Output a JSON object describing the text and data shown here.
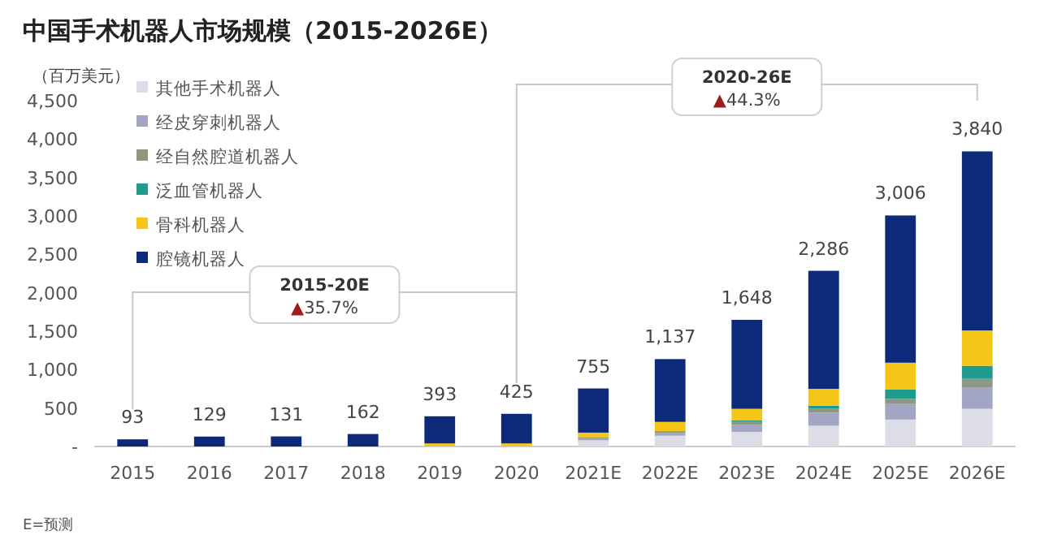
{
  "chart_data": {
    "type": "bar",
    "stacked": true,
    "title": "中国手术机器人市场规模（2015-2026E）",
    "ylabel": "（百万美元）",
    "categories": [
      "2015",
      "2016",
      "2017",
      "2018",
      "2019",
      "2020",
      "2021E",
      "2022E",
      "2023E",
      "2024E",
      "2025E",
      "2026E"
    ],
    "series": [
      {
        "name": "其他手术机器人",
        "color": "#dcdde6",
        "values": [
          null,
          null,
          null,
          null,
          null,
          null,
          80,
          140,
          190,
          270,
          350,
          490
        ]
      },
      {
        "name": "经皮穿刺机器人",
        "color": "#a3a6c2",
        "values": [
          null,
          null,
          null,
          null,
          null,
          null,
          20,
          40,
          90,
          170,
          210,
          280
        ]
      },
      {
        "name": "经自然腔道机器人",
        "color": "#8c9882",
        "values": [
          null,
          null,
          null,
          null,
          null,
          null,
          20,
          20,
          40,
          50,
          60,
          110
        ]
      },
      {
        "name": "泛血管机器人",
        "color": "#1f9a8c",
        "values": [
          null,
          null,
          null,
          null,
          null,
          null,
          null,
          null,
          20,
          40,
          120,
          170
        ]
      },
      {
        "name": "骨科机器人",
        "color": "#f5c518",
        "values": [
          null,
          null,
          null,
          null,
          40,
          40,
          60,
          120,
          150,
          220,
          350,
          460
        ]
      },
      {
        "name": "腔镜机器人",
        "color": "#0d2a7a",
        "values": [
          93,
          129,
          131,
          162,
          353,
          385,
          575,
          817,
          1158,
          1536,
          1916,
          2330
        ]
      }
    ],
    "totals": [
      "93",
      "129",
      "131",
      "162",
      "393",
      "425",
      "755",
      "1,137",
      "1,648",
      "2,286",
      "3,006",
      "3,840"
    ],
    "ylim": [
      0,
      4500
    ],
    "yticks": [
      {
        "value": 0,
        "label": "-"
      },
      500,
      {
        "value": 1000,
        "label": "1,000"
      },
      {
        "value": 1500,
        "label": "1,500"
      },
      {
        "value": 2000,
        "label": "2,000"
      },
      {
        "value": 2500,
        "label": "2,500"
      },
      {
        "value": 3000,
        "label": "3,000"
      },
      {
        "value": 3500,
        "label": "3,500"
      },
      {
        "value": 4000,
        "label": "4,000"
      },
      {
        "value": 4500,
        "label": "4,500"
      }
    ],
    "legend": "top left",
    "grid": false,
    "annotations": [
      "2015-20E",
      "▲35.7%",
      "2020-26E",
      "▲44.3%",
      "E=预测"
    ]
  }
}
